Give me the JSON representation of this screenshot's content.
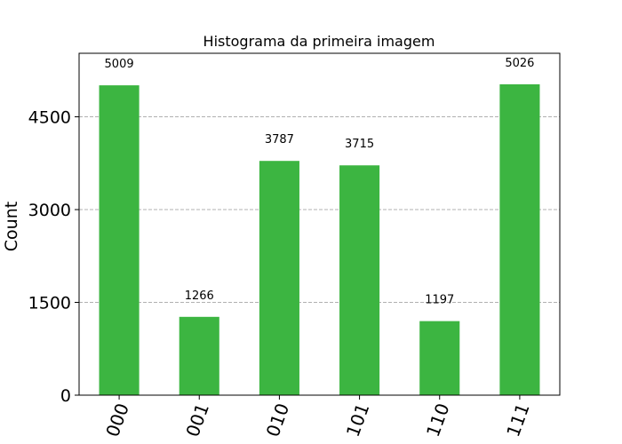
{
  "chart_data": {
    "type": "bar",
    "title": "Histograma da primeira imagem",
    "xlabel": "",
    "ylabel": "Count",
    "categories": [
      "000",
      "001",
      "010",
      "101",
      "110",
      "111"
    ],
    "values": [
      5009,
      1266,
      3787,
      3715,
      1197,
      5026
    ],
    "data_labels": [
      "5009",
      "1266",
      "3787",
      "3715",
      "1197",
      "5026"
    ],
    "yticks": [
      0,
      1500,
      3000,
      4500
    ],
    "ylim": [
      0,
      5527
    ],
    "grid": "horizontal dashed",
    "bar_color": "#3cb541",
    "grid_color": "#b0b0b0"
  }
}
